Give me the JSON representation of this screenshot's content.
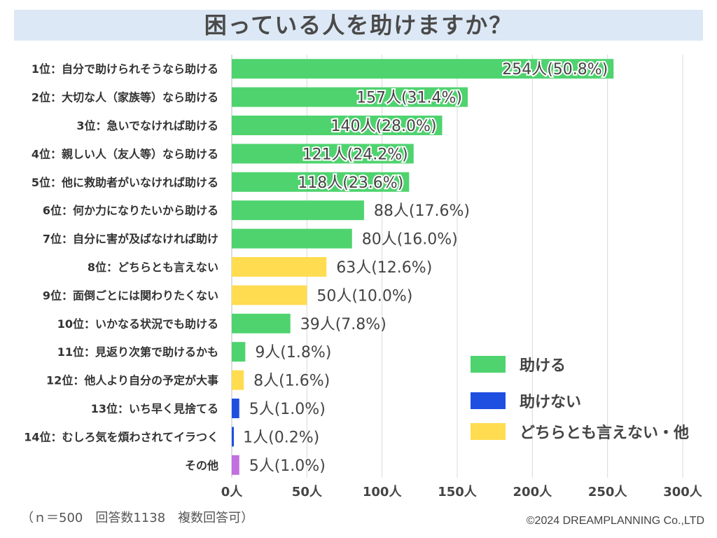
{
  "title": "困っている人を助けますか？",
  "chart_data": {
    "type": "bar",
    "orientation": "horizontal",
    "categories": [
      "1位：自分で助けられそうなら助ける",
      "2位：大切な人（家族等）なら助ける",
      "3位：急いでなければ助ける",
      "4位：親しい人（友人等）なら助ける",
      "5位：他に救助者がいなければ助ける",
      "6位：何か力になりたいから助ける",
      "7位：自分に害が及ばなければ助け",
      "8位：どちらとも言えない",
      "9位：面倒ごとには関わりたくない",
      "10位：いかなる状況でも助ける",
      "11位：見返り次第で助けるかも",
      "12位：他人より自分の予定が大事",
      "13位：いち早く見捨てる",
      "14位：むしろ気を煩わされてイラつく",
      "その他"
    ],
    "values": [
      254,
      157,
      140,
      121,
      118,
      88,
      80,
      63,
      50,
      39,
      9,
      8,
      5,
      1,
      5
    ],
    "value_labels": [
      "254人(50.8%)",
      "157人(31.4%)",
      "140人(28.0%)",
      "121人(24.2%)",
      "118人(23.6%)",
      "88人(17.6%)",
      "80人(16.0%)",
      "63人(12.6%)",
      "50人(10.0%)",
      "39人(7.8%)",
      "9人(1.8%)",
      "8人(1.6%)",
      "5人(1.0%)",
      "1人(0.2%)",
      "5人(1.0%)"
    ],
    "groups": [
      "help",
      "help",
      "help",
      "help",
      "help",
      "help",
      "help",
      "neutral",
      "neutral",
      "help",
      "help",
      "neutral",
      "nohelp",
      "nohelp",
      "other"
    ],
    "colors": {
      "help": "#4fd36f",
      "nohelp": "#1f4fe0",
      "neutral": "#ffdc50",
      "other": "#c070e0"
    },
    "xlim": [
      0,
      300
    ],
    "xticks": [
      0,
      50,
      100,
      150,
      200,
      250,
      300
    ],
    "xtick_labels": [
      "0人",
      "50人",
      "100人",
      "150人",
      "200人",
      "250人",
      "300人"
    ],
    "grid": true,
    "legend": [
      {
        "label": "助ける",
        "group": "help"
      },
      {
        "label": "助けない",
        "group": "nohelp"
      },
      {
        "label": "どちらとも言えない・他",
        "group": "neutral"
      }
    ],
    "legend_position": "lower-right"
  },
  "footnote": "（ｎ＝500　回答数1138　複数回答可）",
  "copyright": "©2024 DREAMPLANNING Co.,LTD"
}
